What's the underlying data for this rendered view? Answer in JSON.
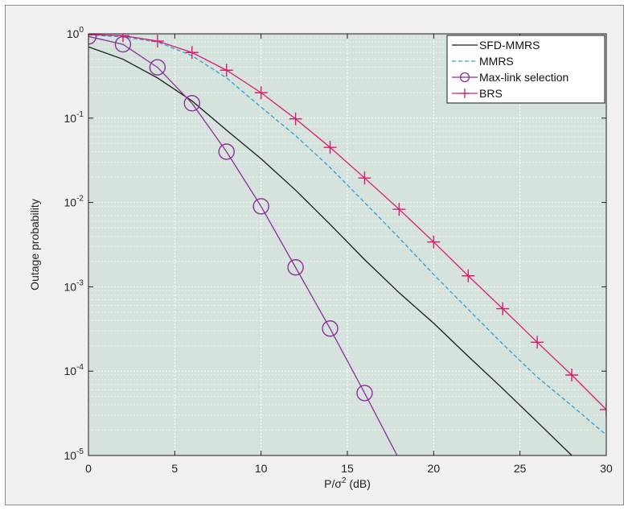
{
  "chart_data": {
    "type": "line",
    "xlabel": "P/σ² (dB)",
    "ylabel": "Outage probability",
    "xlim": [
      0,
      30
    ],
    "ylim": [
      1e-05,
      1
    ],
    "yscale": "log",
    "xticks": [
      0,
      5,
      10,
      15,
      20,
      25,
      30
    ],
    "yticks": [
      {
        "value": 1,
        "base": "10",
        "exp": "0"
      },
      {
        "value": 0.1,
        "base": "10",
        "exp": "-1"
      },
      {
        "value": 0.01,
        "base": "10",
        "exp": "-2"
      },
      {
        "value": 0.001,
        "base": "10",
        "exp": "-3"
      },
      {
        "value": 0.0001,
        "base": "10",
        "exp": "-4"
      },
      {
        "value": 1e-05,
        "base": "10",
        "exp": "-5"
      }
    ],
    "grid": true,
    "legend_position": "top-right",
    "series": [
      {
        "name": "SFD-MMRS",
        "color": "#1a1a1a",
        "dash": "solid",
        "marker": "none",
        "x": [
          0,
          2,
          4,
          6,
          8,
          10,
          12,
          14,
          16,
          18,
          20,
          22,
          24,
          26,
          28,
          30
        ],
        "y": [
          0.7,
          0.5,
          0.3,
          0.16,
          0.072,
          0.033,
          0.014,
          0.0055,
          0.0021,
          0.00085,
          0.00037,
          0.00015,
          6.2e-05,
          2.5e-05,
          1e-05,
          4.2e-06
        ]
      },
      {
        "name": "MMRS",
        "color": "#2aa0d6",
        "dash": "dashed",
        "marker": "none",
        "x": [
          0,
          2,
          4,
          6,
          8,
          10,
          12,
          14,
          16,
          18,
          20,
          22,
          24,
          26,
          28,
          30
        ],
        "y": [
          0.97,
          0.92,
          0.8,
          0.55,
          0.3,
          0.135,
          0.062,
          0.026,
          0.01,
          0.0038,
          0.0014,
          0.00054,
          0.00021,
          8.5e-05,
          3.9e-05,
          1.75e-05
        ]
      },
      {
        "name": "Max-link selection",
        "color": "#8b2f9a",
        "dash": "solid",
        "marker": "circle",
        "x": [
          0,
          2,
          4,
          6,
          8,
          10,
          12,
          14,
          16,
          18
        ],
        "y": [
          0.93,
          0.75,
          0.4,
          0.15,
          0.04,
          0.009,
          0.0017,
          0.00032,
          5.5e-05,
          9e-06
        ]
      },
      {
        "name": "BRS",
        "color": "#d61e6e",
        "dash": "solid",
        "marker": "plus",
        "x": [
          0,
          2,
          4,
          6,
          8,
          10,
          12,
          14,
          16,
          18,
          20,
          22,
          24,
          26,
          28,
          30
        ],
        "y": [
          0.98,
          0.95,
          0.82,
          0.6,
          0.37,
          0.2,
          0.098,
          0.045,
          0.0195,
          0.0083,
          0.0034,
          0.00135,
          0.00055,
          0.00022,
          9e-05,
          3.5e-05
        ]
      }
    ]
  }
}
